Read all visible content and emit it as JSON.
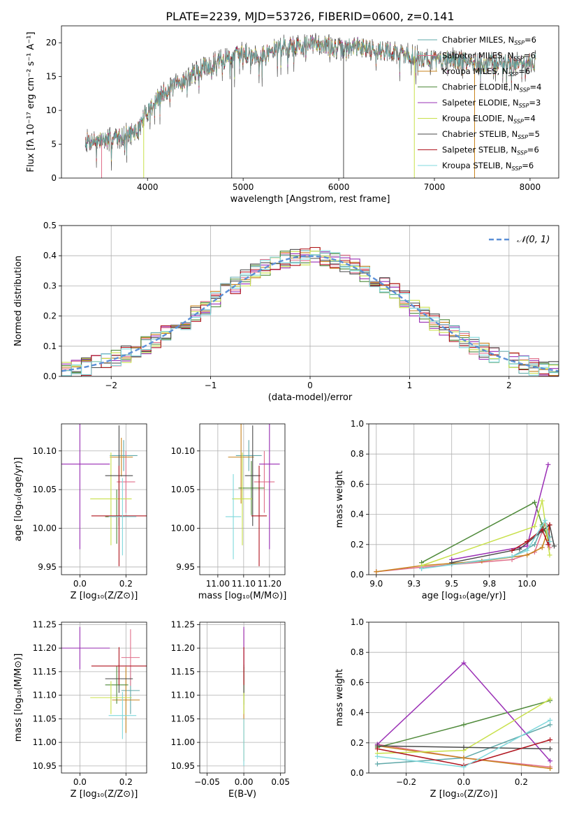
{
  "figure": {
    "title": "PLATE=2239, MJD=53726, FIBERID=0600, z=0.141"
  },
  "series_styles": [
    {
      "name": "Chabrier MILES",
      "nssp": "6",
      "color": "#5fa8a8"
    },
    {
      "name": "Salpeter MILES",
      "nssp": "6",
      "color": "#e06f8a"
    },
    {
      "name": "Kroupa MILES",
      "nssp": "6",
      "color": "#c8831e"
    },
    {
      "name": "Chabrier ELODIE",
      "nssp": "4",
      "color": "#4f8a3a"
    },
    {
      "name": "Salpeter ELODIE",
      "nssp": "3",
      "color": "#9a2fb5"
    },
    {
      "name": "Kroupa ELODIE",
      "nssp": "4",
      "color": "#c8e04a"
    },
    {
      "name": "Chabrier STELIB",
      "nssp": "5",
      "color": "#4a4a4a"
    },
    {
      "name": "Salpeter STELIB",
      "nssp": "6",
      "color": "#b0141e"
    },
    {
      "name": "Kroupa STELIB",
      "nssp": "6",
      "color": "#7fd8dc"
    }
  ],
  "chart_data": [
    {
      "id": "spectrum",
      "type": "line",
      "xlabel": "wavelength [Angstrom, rest frame]",
      "ylabel": "Flux [fλ 10⁻¹⁷ erg cm⁻² s⁻¹ A⁻¹]",
      "xlim": [
        3100,
        8300
      ],
      "ylim": [
        0,
        22.5
      ],
      "xticks": [
        4000,
        5000,
        6000,
        7000,
        8000
      ],
      "yticks": [
        0,
        5,
        10,
        15,
        20
      ],
      "grid": false,
      "legend_position": "top-right",
      "continuum_x": [
        3350,
        3500,
        3700,
        3900,
        4000,
        4200,
        4400,
        4600,
        4800,
        5000,
        5200,
        5400,
        5600,
        5800,
        6000,
        6200,
        6400,
        6600,
        6800,
        7000,
        7200,
        7400,
        7600,
        7800,
        8060
      ],
      "continuum_y": [
        5.5,
        5.5,
        6.0,
        7.0,
        10.0,
        13.0,
        14.5,
        16.5,
        17.5,
        18.5,
        18.0,
        19.5,
        19.5,
        20.0,
        19.0,
        19.5,
        19.0,
        18.5,
        18.0,
        17.5,
        17.5,
        17.0,
        17.0,
        17.0,
        17.2
      ]
    },
    {
      "id": "residual_hist",
      "type": "line",
      "xlabel": "(data-model)/error",
      "ylabel": "Normed distribution",
      "xlim": [
        -2.5,
        2.5
      ],
      "ylim": [
        0,
        0.5
      ],
      "xticks": [
        -2,
        -1,
        0,
        1,
        2
      ],
      "yticks": [
        0.0,
        0.1,
        0.2,
        0.3,
        0.4,
        0.5
      ],
      "grid": true,
      "legend_label": "𝒩(0, 1)",
      "legend_position": "top-right",
      "gaussian": {
        "mean": 0,
        "sigma": 1,
        "color": "#5b8fd6"
      },
      "bin_width": 0.1
    },
    {
      "id": "z_vs_age",
      "type": "scatter",
      "xlabel": "Z [log₁₀(Z/Z⊙)]",
      "ylabel": "age [log₁₀(age/yr)]",
      "xlim": [
        -0.08,
        0.29
      ],
      "ylim": [
        9.94,
        10.135
      ],
      "xticks": [
        0.0,
        0.2
      ],
      "yticks": [
        9.95,
        10.0,
        10.05,
        10.1
      ],
      "points": [
        {
          "series": 0,
          "x": 0.19,
          "y": 10.094,
          "xerr": 0.06,
          "yerr": 0.02
        },
        {
          "series": 1,
          "x": 0.2,
          "y": 10.06,
          "xerr": 0.04,
          "yerr": 0.04
        },
        {
          "series": 2,
          "x": 0.18,
          "y": 10.092,
          "xerr": 0.05,
          "yerr": 0.025
        },
        {
          "series": 3,
          "x": 0.16,
          "y": 10.015,
          "xerr": 0.05,
          "yerr": 0.035
        },
        {
          "series": 4,
          "x": 0.0,
          "y": 10.083,
          "xerr": 0.13,
          "yerr": 0.11
        },
        {
          "series": 5,
          "x": 0.135,
          "y": 10.038,
          "xerr": 0.09,
          "yerr": 0.06
        },
        {
          "series": 6,
          "x": 0.17,
          "y": 10.068,
          "xerr": 0.06,
          "yerr": 0.065
        },
        {
          "series": 7,
          "x": 0.17,
          "y": 10.016,
          "xerr": 0.12,
          "yerr": 0.065
        },
        {
          "series": 8,
          "x": 0.185,
          "y": 10.015,
          "xerr": 0.06,
          "yerr": 0.05
        }
      ]
    },
    {
      "id": "mass_vs_age",
      "type": "scatter",
      "xlabel": "mass [log₁₀(M/M⊙)]",
      "ylabel": "",
      "xlim": [
        10.93,
        11.26
      ],
      "ylim": [
        9.94,
        10.135
      ],
      "xticks": [
        11.0,
        11.1,
        11.2
      ],
      "yticks": [
        9.95,
        10.0,
        10.05,
        10.1
      ],
      "points": [
        {
          "series": 0,
          "x": 11.12,
          "y": 10.094,
          "xerr": 0.05,
          "yerr": 0.02
        },
        {
          "series": 1,
          "x": 11.18,
          "y": 10.06,
          "xerr": 0.04,
          "yerr": 0.04
        },
        {
          "series": 2,
          "x": 11.09,
          "y": 10.092,
          "xerr": 0.05,
          "yerr": 0.06
        },
        {
          "series": 3,
          "x": 11.13,
          "y": 10.052,
          "xerr": 0.05,
          "yerr": 0.035
        },
        {
          "series": 4,
          "x": 11.2,
          "y": 10.083,
          "xerr": 0.04,
          "yerr": 0.11
        },
        {
          "series": 5,
          "x": 11.095,
          "y": 10.038,
          "xerr": 0.04,
          "yerr": 0.06
        },
        {
          "series": 6,
          "x": 11.135,
          "y": 10.068,
          "xerr": 0.03,
          "yerr": 0.065
        },
        {
          "series": 7,
          "x": 11.16,
          "y": 10.016,
          "xerr": 0.03,
          "yerr": 0.065
        },
        {
          "series": 8,
          "x": 11.06,
          "y": 10.015,
          "xerr": 0.03,
          "yerr": 0.055
        }
      ]
    },
    {
      "id": "z_vs_mass",
      "type": "scatter",
      "xlabel": "Z [log₁₀(Z/Z⊙)]",
      "ylabel": "mass [log₁₀(M/M⊙)]",
      "xlim": [
        -0.08,
        0.29
      ],
      "ylim": [
        10.935,
        11.255
      ],
      "xticks": [
        0.0,
        0.2
      ],
      "yticks": [
        10.95,
        11.0,
        11.05,
        11.1,
        11.15,
        11.2,
        11.25
      ],
      "points": [
        {
          "series": 0,
          "x": 0.22,
          "y": 11.11,
          "xerr": 0.04,
          "yerr": 0.05
        },
        {
          "series": 1,
          "x": 0.22,
          "y": 11.18,
          "xerr": 0.04,
          "yerr": 0.06
        },
        {
          "series": 2,
          "x": 0.2,
          "y": 11.09,
          "xerr": 0.06,
          "yerr": 0.07
        },
        {
          "series": 3,
          "x": 0.16,
          "y": 11.122,
          "xerr": 0.05,
          "yerr": 0.04
        },
        {
          "series": 4,
          "x": 0.0,
          "y": 11.2,
          "xerr": 0.13,
          "yerr": 0.045
        },
        {
          "series": 5,
          "x": 0.135,
          "y": 11.095,
          "xerr": 0.09,
          "yerr": 0.035
        },
        {
          "series": 6,
          "x": 0.17,
          "y": 11.135,
          "xerr": 0.06,
          "yerr": 0.03
        },
        {
          "series": 7,
          "x": 0.17,
          "y": 11.162,
          "xerr": 0.12,
          "yerr": 0.04
        },
        {
          "series": 8,
          "x": 0.185,
          "y": 11.057,
          "xerr": 0.06,
          "yerr": 0.05
        }
      ]
    },
    {
      "id": "ebv_vs_mass",
      "type": "scatter",
      "xlabel": "E(B-V)",
      "ylabel": "",
      "xlim": [
        -0.06,
        0.056
      ],
      "ylim": [
        10.935,
        11.255
      ],
      "xticks": [
        -0.05,
        0.0,
        0.05
      ],
      "yticks": [
        10.95,
        11.0,
        11.05,
        11.1,
        11.15,
        11.2,
        11.25
      ],
      "points": [
        {
          "series": 0,
          "x": 0.0,
          "y": 11.11,
          "xerr": 0.0,
          "yerr": 0.05
        },
        {
          "series": 1,
          "x": 0.0,
          "y": 11.18,
          "xerr": 0.0,
          "yerr": 0.06
        },
        {
          "series": 2,
          "x": 0.0,
          "y": 11.06,
          "xerr": 0.0,
          "yerr": 0.1
        },
        {
          "series": 3,
          "x": 0.0,
          "y": 11.12,
          "xerr": 0.0,
          "yerr": 0.04
        },
        {
          "series": 4,
          "x": 0.0,
          "y": 11.2,
          "xerr": 0.0,
          "yerr": 0.045
        },
        {
          "series": 5,
          "x": 0.0,
          "y": 11.095,
          "xerr": 0.0,
          "yerr": 0.035
        },
        {
          "series": 6,
          "x": 0.0,
          "y": 11.135,
          "xerr": 0.0,
          "yerr": 0.03
        },
        {
          "series": 7,
          "x": 0.0,
          "y": 11.162,
          "xerr": 0.0,
          "yerr": 0.04
        },
        {
          "series": 8,
          "x": 0.0,
          "y": 11.0,
          "xerr": 0.0,
          "yerr": 0.05
        }
      ]
    },
    {
      "id": "age_vs_weight",
      "type": "line",
      "xlabel": "age [log₁₀(age/yr)]",
      "ylabel": "mass weight",
      "xlim": [
        8.95,
        10.21
      ],
      "ylim": [
        0,
        1.0
      ],
      "xticks": [
        9.0,
        9.25,
        9.5,
        9.75,
        10.0
      ],
      "yticks": [
        0.0,
        0.2,
        0.4,
        0.6,
        0.8,
        1.0
      ],
      "grid": true,
      "series": [
        {
          "series": 0,
          "points": [
            [
              9.3,
              0.04
            ],
            [
              9.5,
              0.07
            ],
            [
              9.9,
              0.12
            ],
            [
              10.05,
              0.2
            ],
            [
              10.1,
              0.32
            ],
            [
              10.15,
              0.25
            ]
          ]
        },
        {
          "series": 1,
          "points": [
            [
              9.0,
              0.02
            ],
            [
              9.3,
              0.05
            ],
            [
              9.9,
              0.1
            ],
            [
              10.05,
              0.15
            ],
            [
              10.12,
              0.34
            ],
            [
              10.15,
              0.18
            ]
          ]
        },
        {
          "series": 2,
          "points": [
            [
              9.0,
              0.02
            ],
            [
              9.3,
              0.06
            ],
            [
              9.7,
              0.09
            ],
            [
              10.0,
              0.13
            ],
            [
              10.1,
              0.18
            ],
            [
              10.15,
              0.33
            ]
          ]
        },
        {
          "series": 3,
          "points": [
            [
              9.3,
              0.08
            ],
            [
              10.05,
              0.48
            ],
            [
              10.1,
              0.33
            ],
            [
              10.15,
              0.22
            ]
          ]
        },
        {
          "series": 4,
          "points": [
            [
              9.5,
              0.1
            ],
            [
              10.0,
              0.19
            ],
            [
              10.14,
              0.73
            ]
          ]
        },
        {
          "series": 5,
          "points": [
            [
              9.3,
              0.06
            ],
            [
              10.05,
              0.32
            ],
            [
              10.1,
              0.49
            ],
            [
              10.15,
              0.13
            ]
          ]
        },
        {
          "series": 6,
          "points": [
            [
              9.5,
              0.08
            ],
            [
              9.95,
              0.17
            ],
            [
              10.1,
              0.29
            ],
            [
              10.15,
              0.33
            ],
            [
              10.18,
              0.19
            ]
          ]
        },
        {
          "series": 7,
          "points": [
            [
              9.9,
              0.16
            ],
            [
              10.0,
              0.22
            ],
            [
              10.1,
              0.3
            ],
            [
              10.14,
              0.2
            ],
            [
              10.15,
              0.33
            ]
          ]
        },
        {
          "series": 8,
          "points": [
            [
              9.3,
              0.04
            ],
            [
              9.9,
              0.12
            ],
            [
              10.0,
              0.16
            ],
            [
              10.12,
              0.36
            ],
            [
              10.15,
              0.22
            ]
          ]
        }
      ]
    },
    {
      "id": "z_vs_weight",
      "type": "line",
      "xlabel": "Z [log₁₀(Z/Z⊙)]",
      "ylabel": "mass weight",
      "xlim": [
        -0.33,
        0.33
      ],
      "ylim": [
        0,
        1.0
      ],
      "xticks": [
        -0.2,
        0.0,
        0.2
      ],
      "yticks": [
        0.0,
        0.2,
        0.4,
        0.6,
        0.8,
        1.0
      ],
      "grid": true,
      "series": [
        {
          "series": 0,
          "points": [
            [
              -0.3,
              0.06
            ],
            [
              0.0,
              0.1
            ],
            [
              0.3,
              0.32
            ]
          ]
        },
        {
          "series": 1,
          "points": [
            [
              -0.3,
              0.19
            ],
            [
              0.0,
              0.1
            ],
            [
              0.3,
              0.04
            ]
          ]
        },
        {
          "series": 2,
          "points": [
            [
              -0.3,
              0.18
            ],
            [
              0.0,
              0.1
            ],
            [
              0.3,
              0.03
            ]
          ]
        },
        {
          "series": 3,
          "points": [
            [
              -0.3,
              0.17
            ],
            [
              0.0,
              0.32
            ],
            [
              0.3,
              0.48
            ]
          ]
        },
        {
          "series": 4,
          "points": [
            [
              -0.3,
              0.19
            ],
            [
              0.0,
              0.73
            ],
            [
              0.3,
              0.08
            ]
          ]
        },
        {
          "series": 5,
          "points": [
            [
              -0.3,
              0.13
            ],
            [
              0.0,
              0.15
            ],
            [
              0.3,
              0.49
            ]
          ]
        },
        {
          "series": 6,
          "points": [
            [
              -0.3,
              0.18
            ],
            [
              0.0,
              0.17
            ],
            [
              0.3,
              0.16
            ]
          ]
        },
        {
          "series": 7,
          "points": [
            [
              -0.3,
              0.16
            ],
            [
              0.0,
              0.05
            ],
            [
              0.3,
              0.22
            ]
          ]
        },
        {
          "series": 8,
          "points": [
            [
              -0.3,
              0.11
            ],
            [
              0.0,
              0.04
            ],
            [
              0.3,
              0.35
            ]
          ]
        }
      ]
    }
  ]
}
